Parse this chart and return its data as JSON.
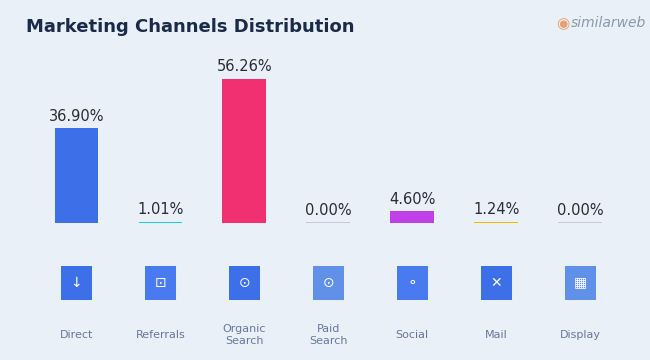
{
  "title": "Marketing Channels Distribution",
  "background_color": "#eaf0f8",
  "categories": [
    "Direct",
    "Referrals",
    "Organic\nSearch",
    "Paid\nSearch",
    "Social",
    "Mail",
    "Display"
  ],
  "values": [
    36.9,
    1.01,
    56.26,
    0.0,
    4.6,
    1.24,
    0.0
  ],
  "labels": [
    "36.90%",
    "1.01%",
    "56.26%",
    "0.00%",
    "4.60%",
    "1.24%",
    "0.00%"
  ],
  "bar_colors": [
    "#3d6fe8",
    "#1ecfcf",
    "#f03070",
    "#c8c8d0",
    "#c040e8",
    "#f5b800",
    "#c8c8d0"
  ],
  "ylim": [
    0,
    70
  ],
  "title_fontsize": 13,
  "label_fontsize": 10.5,
  "similarweb_color": "#8899aa",
  "title_color": "#1a2a4a",
  "label_color": "#2a2a3a",
  "thin_bar_threshold": 3.0,
  "thin_bar_height": 0.6,
  "zero_bar_height": 0.35,
  "zero_bar_color": "#c8c8d8"
}
